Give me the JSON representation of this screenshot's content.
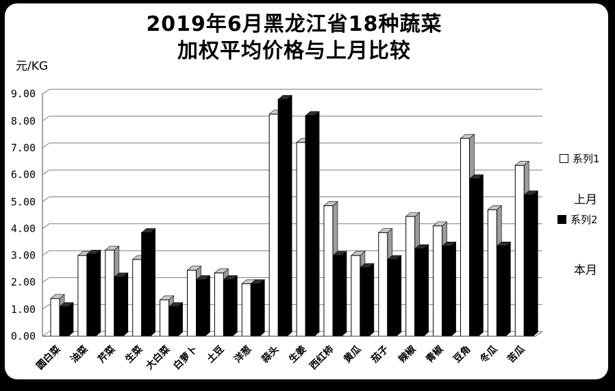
{
  "frame": {
    "background": "#000000",
    "card_background": "#ffffff"
  },
  "title": {
    "line1": "2019年6月黑龙江省18种蔬菜",
    "line2": "加权平均价格与上月比较"
  },
  "y_axis": {
    "unit_label": "元/KG",
    "ticks": [
      "0.00",
      "1.00",
      "2.00",
      "3.00",
      "4.00",
      "5.00",
      "6.00",
      "7.00",
      "8.00",
      "9.00"
    ]
  },
  "legend": {
    "items": [
      {
        "swatch": "white-open-square",
        "label": "系列1",
        "meaning": "上月"
      },
      {
        "swatch": "black-filled-square",
        "label": "系列2",
        "meaning": "本月"
      }
    ]
  },
  "chart_data": {
    "type": "bar",
    "title": "2019年6月黑龙江省18种蔬菜加权平均价格与上月比较",
    "xlabel": "",
    "ylabel": "元/KG",
    "ylim": [
      0,
      9
    ],
    "ytick_step": 1.0,
    "grid": true,
    "legend_position": "right",
    "style": "3d-column-black-white",
    "categories": [
      "圆白菜",
      "油菜",
      "芹菜",
      "生菜",
      "大白菜",
      "白萝卜",
      "土豆",
      "洋葱",
      "蒜头",
      "生姜",
      "西红柿",
      "黄瓜",
      "茄子",
      "辣椒",
      "青椒",
      "豆角",
      "冬瓜",
      "苦瓜"
    ],
    "series": [
      {
        "name": "系列1",
        "meaning": "上月",
        "color": "#ffffff",
        "values": [
          1.4,
          3.0,
          3.2,
          2.85,
          1.35,
          2.45,
          2.35,
          1.95,
          8.25,
          7.2,
          4.85,
          3.0,
          3.85,
          4.45,
          4.1,
          7.35,
          4.7,
          6.35
        ]
      },
      {
        "name": "系列2",
        "meaning": "本月",
        "color": "#000000",
        "values": [
          1.1,
          3.05,
          2.2,
          3.85,
          1.1,
          2.1,
          2.1,
          1.95,
          8.8,
          8.2,
          3.0,
          2.55,
          2.85,
          3.25,
          3.35,
          5.85,
          3.35,
          5.25
        ]
      }
    ]
  }
}
